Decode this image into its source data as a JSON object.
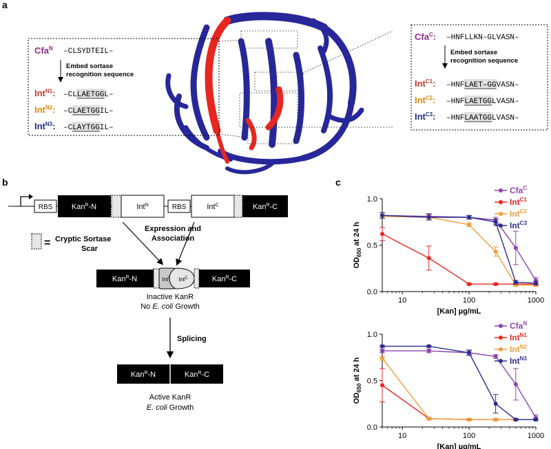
{
  "panel_a": {
    "label": "a",
    "left_box": {
      "header_label": "Cfa",
      "header_sup": "N",
      "header_seq": "–CLSYDTEIL–",
      "arrow_text": [
        "Embed sortase",
        "recognition sequence"
      ],
      "rows": [
        {
          "label": "Int",
          "sup": "N1",
          "color": "#c0392b",
          "seq_pre": "–CL",
          "seq_hl": "LAETGG",
          "seq_post": "L–"
        },
        {
          "label": "Int",
          "sup": "N2",
          "color": "#d68910",
          "seq_pre": "–C",
          "seq_hl": "LAETGG",
          "seq_post": "IL–"
        },
        {
          "label": "Int",
          "sup": "N3",
          "color": "#1f2a80",
          "seq_pre": "–C",
          "seq_hl": "LAYTGG",
          "seq_post": "IL–"
        }
      ]
    },
    "right_box": {
      "header_label": "Cfa",
      "header_sup": "C",
      "header_seq": "–HNFLLKN–GLVASN–",
      "arrow_text": [
        "Embed sortase",
        "recognition sequence"
      ],
      "rows": [
        {
          "label": "Int",
          "sup": "C1",
          "color": "#c0392b",
          "seq_pre": "–HNF",
          "seq_hl": "LAET–GG",
          "seq_post": "VASN–"
        },
        {
          "label": "Int",
          "sup": "C2",
          "color": "#d68910",
          "seq_pre": "–HNF",
          "seq_hl": "LAETGG",
          "seq_post": "LVASN–"
        },
        {
          "label": "Int",
          "sup": "C3",
          "color": "#1f2a80",
          "seq_pre": "–HNF",
          "seq_hl": "LAATGG",
          "seq_post": "LVASN–"
        }
      ]
    }
  },
  "panel_b": {
    "label": "b",
    "construct": {
      "promoter": "",
      "rbs1": "RBS",
      "kan_n": "Kan",
      "kan_n_sup": "R",
      "kan_n_suffix": "-N",
      "int_n": "Int",
      "int_n_sup": "N",
      "rbs2": "RBS",
      "int_c": "Int",
      "int_c_sup": "C",
      "kan_c": "Kan",
      "kan_c_sup": "R",
      "kan_c_suffix": "-C"
    },
    "legend": {
      "equals": "=",
      "text1": "Cryptic Sortase",
      "text2": "Scar"
    },
    "expression": [
      "Expression and",
      "Association"
    ],
    "inactive_label": [
      "Inactive KanR",
      "No ",
      "E. coli",
      " Growth"
    ],
    "splicing": "Splicing",
    "active_label": [
      "Active KanR",
      "E. coli",
      " Growth"
    ]
  },
  "panel_c": {
    "label": "c"
  },
  "chart_data": [
    {
      "type": "line",
      "xscale": "log",
      "xlim": [
        5,
        1000
      ],
      "ylim": [
        0,
        1.0
      ],
      "xticks": [
        10,
        100,
        1000
      ],
      "xtick_labels": [
        "10",
        "100",
        "1000"
      ],
      "yticks": [
        0.0,
        0.5,
        1.0
      ],
      "ytick_labels": [
        "0.0",
        "0.5",
        "1.0"
      ],
      "xlabel": "[Kan] µg/mL",
      "ylabel": "OD",
      "ylabel_sub": "650",
      "ylabel_suffix": " at 24 h",
      "legend_position": "top-right",
      "x": [
        5,
        25,
        100,
        250,
        500,
        1000
      ],
      "series": [
        {
          "name": "Cfa",
          "sup": "C",
          "color": "#8e44ad",
          "values": [
            0.82,
            0.81,
            0.8,
            0.77,
            0.47,
            0.12
          ],
          "errors": [
            0.03,
            0.03,
            0.02,
            0.03,
            0.18,
            0.03
          ]
        },
        {
          "name": "Int",
          "sup": "C1",
          "color": "#e8261f",
          "values": [
            0.62,
            0.36,
            0.08,
            0.08,
            0.08,
            0.08
          ],
          "errors": [
            0.07,
            0.13,
            0.01,
            0.01,
            0.01,
            0.01
          ]
        },
        {
          "name": "Int",
          "sup": "C2",
          "color": "#f39c38",
          "values": [
            0.81,
            0.8,
            0.72,
            0.43,
            0.07,
            0.07
          ],
          "errors": [
            0.02,
            0.02,
            0.02,
            0.05,
            0.01,
            0.01
          ]
        },
        {
          "name": "Int",
          "sup": "C3",
          "color": "#2c2c90",
          "values": [
            0.82,
            0.8,
            0.8,
            0.75,
            0.1,
            0.09
          ],
          "errors": [
            0.03,
            0.03,
            0.02,
            0.03,
            0.02,
            0.02
          ]
        }
      ]
    },
    {
      "type": "line",
      "xscale": "log",
      "xlim": [
        5,
        1000
      ],
      "ylim": [
        0,
        1.0
      ],
      "xticks": [
        10,
        100,
        1000
      ],
      "xtick_labels": [
        "10",
        "100",
        "1000"
      ],
      "yticks": [
        0.0,
        0.5,
        1.0
      ],
      "ytick_labels": [
        "0.0",
        "0.5",
        "1.0"
      ],
      "xlabel": "[Kan] µg/mL",
      "ylabel": "OD",
      "ylabel_sub": "650",
      "ylabel_suffix": " at 24 h",
      "legend_position": "top-right",
      "x": [
        5,
        25,
        100,
        250,
        500,
        1000
      ],
      "series": [
        {
          "name": "Cfa",
          "sup": "N",
          "color": "#8e44ad",
          "values": [
            0.82,
            0.82,
            0.8,
            0.76,
            0.46,
            0.1
          ],
          "errors": [
            0.02,
            0.02,
            0.02,
            0.02,
            0.17,
            0.03
          ]
        },
        {
          "name": "Int",
          "sup": "N1",
          "color": "#e8261f",
          "values": [
            0.45,
            0.09,
            0.08,
            0.08,
            0.08,
            0.08
          ],
          "errors": [
            0.18,
            0.01,
            0.01,
            0.01,
            0.01,
            0.01
          ]
        },
        {
          "name": "Int",
          "sup": "N2",
          "color": "#f39c38",
          "values": [
            0.74,
            0.09,
            0.08,
            0.08,
            0.08,
            0.08
          ],
          "errors": [
            0.02,
            0.01,
            0.01,
            0.01,
            0.01,
            0.01
          ]
        },
        {
          "name": "Int",
          "sup": "N3",
          "color": "#2c2c90",
          "values": [
            0.87,
            0.87,
            0.8,
            0.25,
            0.08,
            0.08
          ],
          "errors": [
            0.01,
            0.01,
            0.03,
            0.1,
            0.01,
            0.01
          ]
        }
      ]
    }
  ]
}
